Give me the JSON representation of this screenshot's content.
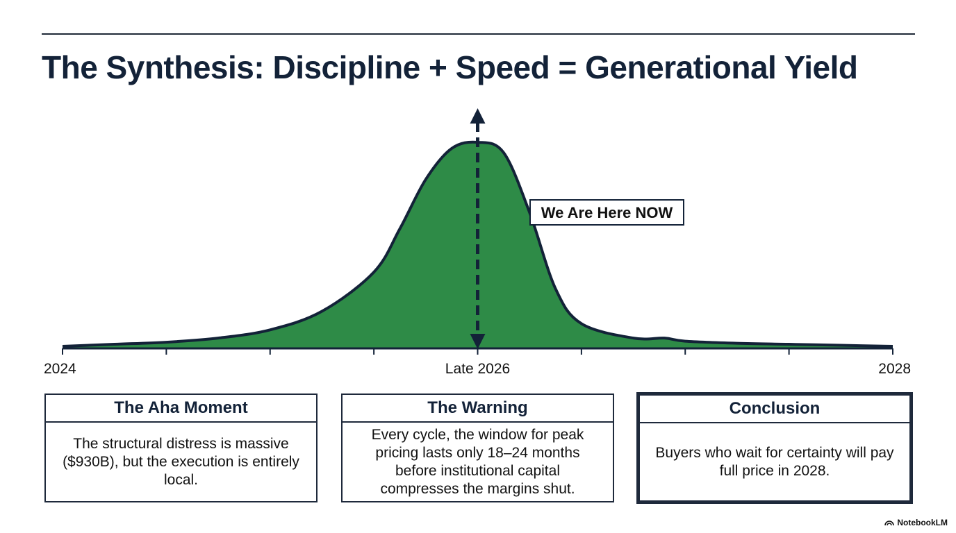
{
  "title": "The Synthesis: Discipline + Speed = Generational Yield",
  "colors": {
    "fill": "#2e8b47",
    "ink": "#132238"
  },
  "chart_data": {
    "type": "area",
    "title": "",
    "x_ticks": [
      "2024",
      "",
      "",
      "",
      "Late 2026",
      "",
      "",
      "",
      "2028"
    ],
    "x_range": [
      0,
      8
    ],
    "curve": {
      "x": [
        0,
        0.5,
        1,
        1.5,
        2,
        2.5,
        3,
        3.25,
        3.5,
        3.75,
        4,
        4.25,
        4.5,
        4.75,
        5,
        5.5,
        5.8,
        6,
        6.5,
        7,
        7.5,
        8
      ],
      "y": [
        0.01,
        0.02,
        0.03,
        0.05,
        0.09,
        0.18,
        0.37,
        0.58,
        0.82,
        0.97,
        1.0,
        0.95,
        0.66,
        0.29,
        0.12,
        0.05,
        0.05,
        0.035,
        0.025,
        0.02,
        0.015,
        0.01
      ]
    },
    "marker": {
      "x": 4,
      "label": "We Are Here NOW"
    }
  },
  "cards": [
    {
      "heading": "The Aha Moment",
      "body": "The structural distress is massive ($930B), but the execution is entirely local."
    },
    {
      "heading": "The Warning",
      "body": "Every cycle, the window for peak pricing lasts only 18–24 months before institutional capital compresses the margins shut."
    },
    {
      "heading": "Conclusion",
      "body": "Buyers who wait for certainty will pay full price in 2028."
    }
  ],
  "brand": "NotebookLM"
}
